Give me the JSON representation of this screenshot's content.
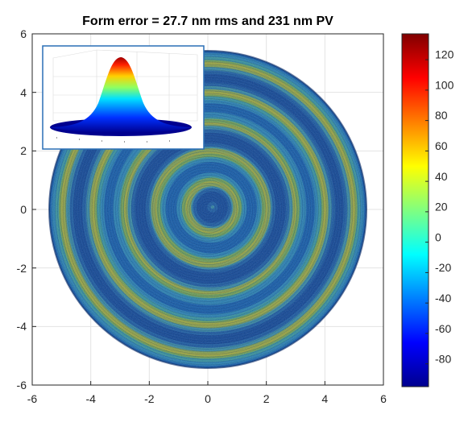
{
  "chart_data": {
    "type": "heatmap",
    "title": "Form error = 27.7 nm rms and 231 nm PV",
    "xlabel": "",
    "ylabel": "",
    "xlim": [
      -6,
      6
    ],
    "ylim": [
      -6,
      6
    ],
    "x_ticks": [
      "-6",
      "-4",
      "-2",
      "0",
      "2",
      "4",
      "6"
    ],
    "y_ticks": [
      "6",
      "4",
      "2",
      "0",
      "-2",
      "-4",
      "-6"
    ],
    "grid": true,
    "aperture_radius": 5.4,
    "clim": [
      -95,
      137
    ],
    "colormap": "jet",
    "colorbar_ticks": [
      "120",
      "100",
      "80",
      "60",
      "40",
      "20",
      "0",
      "-20",
      "-40",
      "-60",
      "-80"
    ],
    "rms_nm": 27.7,
    "pv_nm": 231,
    "pattern": "concentric spiral turning-mark rings",
    "inset": {
      "type": "3d-surface",
      "shape": "gaussian-dome",
      "colormap": "jet"
    }
  }
}
